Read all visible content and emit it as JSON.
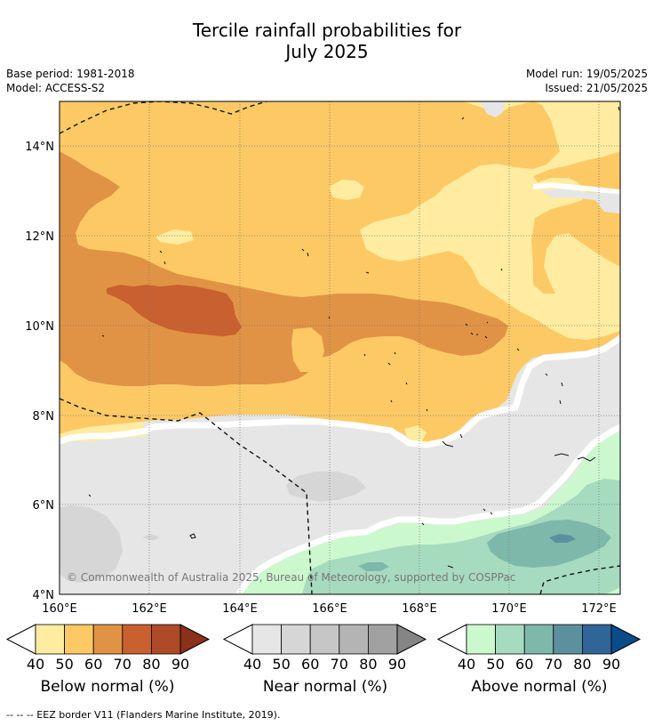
{
  "header": {
    "title_line1": "Tercile rainfall probabilities for",
    "title_line2": "July 2025",
    "base_period": "Base period: 1981-2018",
    "model": "Model: ACCESS-S2",
    "model_run": "Model run: 19/05/2025",
    "issued": "Issued: 21/05/2025"
  },
  "map": {
    "lat_labels": [
      "14°N",
      "12°N",
      "10°N",
      "8°N",
      "6°N",
      "4°N"
    ],
    "lon_labels": [
      "160°E",
      "162°E",
      "164°E",
      "166°E",
      "168°E",
      "170°E",
      "172°E"
    ],
    "copyright": "© Commonwealth of Australia 2025, Bureau of Meteorology, supported by COSPPac",
    "grid": true
  },
  "colorbars": [
    {
      "title": "Below normal (%)",
      "ticks": [
        "40",
        "50",
        "60",
        "70",
        "80",
        "90"
      ],
      "colors": [
        "#ffeca0",
        "#fdc965",
        "#e09345",
        "#c9602f",
        "#ae4a28",
        "#8b3019"
      ]
    },
    {
      "title": "Near normal (%)",
      "ticks": [
        "40",
        "50",
        "60",
        "70",
        "80",
        "90"
      ],
      "colors": [
        "#e6e6e6",
        "#d6d6d6",
        "#c6c6c6",
        "#b4b4b4",
        "#a1a1a1",
        "#858585"
      ]
    },
    {
      "title": "Above normal (%)",
      "ticks": [
        "40",
        "50",
        "60",
        "70",
        "80",
        "90"
      ],
      "colors": [
        "#ccf8ce",
        "#a7dbc0",
        "#7eb8ab",
        "#5c909e",
        "#2f6597",
        "#0b4b8a"
      ]
    }
  ],
  "footer": {
    "legend_text": "--  --  -- EEZ border V11 (Flanders Marine Institute, 2019)."
  }
}
